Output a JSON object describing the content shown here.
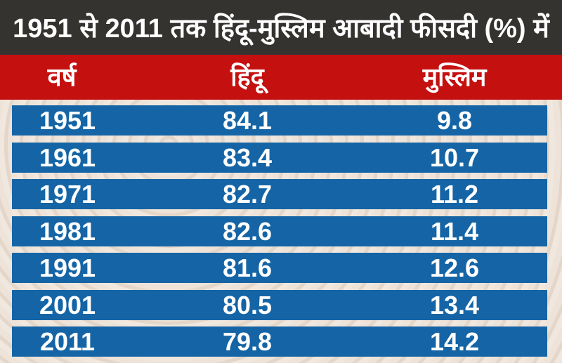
{
  "title": "1951 से 2011 तक हिंदू-मुस्लिम आबादी फीसदी (%) में",
  "colors": {
    "title_bg": "#343330",
    "header_bg": "#c4100f",
    "row_bg": "#1565a6"
  },
  "chart_data": {
    "type": "table",
    "title": "1951 से 2011 तक हिंदू-मुस्लिम आबादी फीसदी (%) में",
    "columns": [
      "वर्ष",
      "हिंदू",
      "मुस्लिम"
    ],
    "rows": [
      [
        "1951",
        "84.1",
        "9.8"
      ],
      [
        "1961",
        "83.4",
        "10.7"
      ],
      [
        "1971",
        "82.7",
        "11.2"
      ],
      [
        "1981",
        "82.6",
        "11.4"
      ],
      [
        "1991",
        "81.6",
        "12.6"
      ],
      [
        "2001",
        "80.5",
        "13.4"
      ],
      [
        "2011",
        "79.8",
        "14.2"
      ]
    ]
  }
}
